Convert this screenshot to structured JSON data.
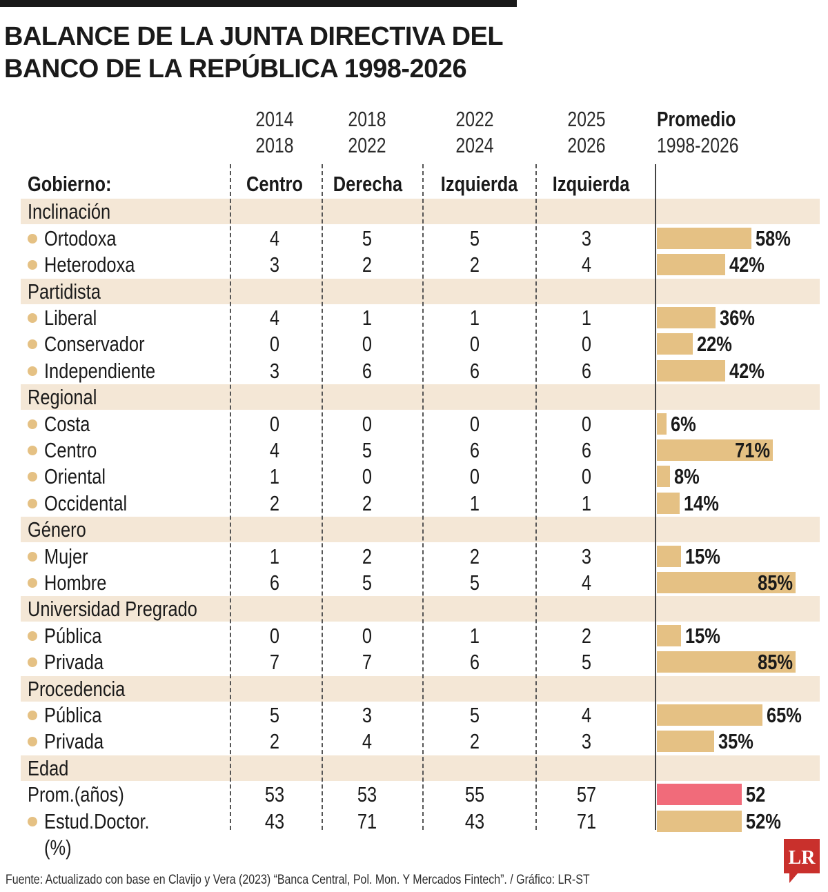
{
  "title": {
    "line1": "BALANCE DE LA JUNTA DIRECTIVA DEL",
    "line2": "BANCO DE LA REPÚBLICA 1998-2026"
  },
  "columns": [
    {
      "from": "2014",
      "to": "2018",
      "gobierno": "Centro"
    },
    {
      "from": "2018",
      "to": "2022",
      "gobierno": "Derecha"
    },
    {
      "from": "2022",
      "to": "2024",
      "gobierno": "Izquierda"
    },
    {
      "from": "2025",
      "to": "2026",
      "gobierno": "Izquierda"
    }
  ],
  "promedio_header": {
    "label": "Promedio",
    "range": "1998-2026"
  },
  "gobierno_label": "Gobierno:",
  "colors": {
    "bar": "#e5c184",
    "bar_highlight": "#f16b7a",
    "band": "#f4e7d6",
    "dot": "#e5c184"
  },
  "sections": [
    {
      "title": "Inclinación",
      "rows": [
        {
          "label": "Ortodoxa",
          "values": [
            "4",
            "5",
            "5",
            "3"
          ],
          "promedio": "58%",
          "bar_percent": 58
        },
        {
          "label": "Heterodoxa",
          "values": [
            "3",
            "2",
            "2",
            "4"
          ],
          "promedio": "42%",
          "bar_percent": 42
        }
      ]
    },
    {
      "title": "Partidista",
      "rows": [
        {
          "label": "Liberal",
          "values": [
            "4",
            "1",
            "1",
            "1"
          ],
          "promedio": "36%",
          "bar_percent": 36
        },
        {
          "label": "Conservador",
          "values": [
            "0",
            "0",
            "0",
            "0"
          ],
          "promedio": "22%",
          "bar_percent": 22
        },
        {
          "label": "Independiente",
          "values": [
            "3",
            "6",
            "6",
            "6"
          ],
          "promedio": "42%",
          "bar_percent": 42
        }
      ]
    },
    {
      "title": "Regional",
      "rows": [
        {
          "label": "Costa",
          "values": [
            "0",
            "0",
            "0",
            "0"
          ],
          "promedio": "6%",
          "bar_percent": 6
        },
        {
          "label": "Centro",
          "values": [
            "4",
            "5",
            "6",
            "6"
          ],
          "promedio": "71%",
          "bar_percent": 71
        },
        {
          "label": "Oriental",
          "values": [
            "1",
            "0",
            "0",
            "0"
          ],
          "promedio": "8%",
          "bar_percent": 8
        },
        {
          "label": "Occidental",
          "values": [
            "2",
            "2",
            "1",
            "1"
          ],
          "promedio": "14%",
          "bar_percent": 14
        }
      ]
    },
    {
      "title": "Género",
      "rows": [
        {
          "label": "Mujer",
          "values": [
            "1",
            "2",
            "2",
            "3"
          ],
          "promedio": "15%",
          "bar_percent": 15
        },
        {
          "label": "Hombre",
          "values": [
            "6",
            "5",
            "5",
            "4"
          ],
          "promedio": "85%",
          "bar_percent": 85
        }
      ]
    },
    {
      "title": "Universidad Pregrado",
      "rows": [
        {
          "label": "Pública",
          "values": [
            "0",
            "0",
            "1",
            "2"
          ],
          "promedio": "15%",
          "bar_percent": 15
        },
        {
          "label": "Privada",
          "values": [
            "7",
            "7",
            "6",
            "5"
          ],
          "promedio": "85%",
          "bar_percent": 85
        }
      ]
    },
    {
      "title": "Procedencia",
      "rows": [
        {
          "label": "Pública",
          "values": [
            "5",
            "3",
            "5",
            "4"
          ],
          "promedio": "65%",
          "bar_percent": 65
        },
        {
          "label": "Privada",
          "values": [
            "2",
            "4",
            "2",
            "3"
          ],
          "promedio": "35%",
          "bar_percent": 35
        }
      ]
    },
    {
      "title": "Edad",
      "rows": [
        {
          "label": "Prom.(años)",
          "values": [
            "53",
            "53",
            "55",
            "57"
          ],
          "promedio": "52",
          "bar_percent": 52,
          "highlight": true,
          "no_dot": true
        },
        {
          "label": "Estud.Doctor.",
          "label2": "(%)",
          "values": [
            "43",
            "71",
            "43",
            "71"
          ],
          "promedio": "52%",
          "bar_percent": 52
        }
      ]
    }
  ],
  "source": "Fuente: Actualizado con base en Clavijo y Vera (2023) “Banca Central, Pol. Mon. Y Mercados Fintech”. / Gráfico: LR-ST",
  "logo": {
    "text": "LR"
  }
}
